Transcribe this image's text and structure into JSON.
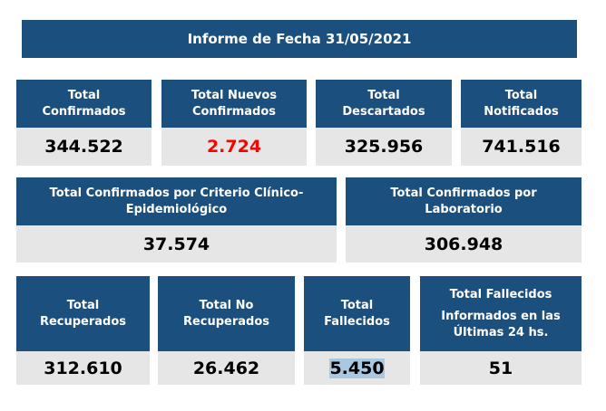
{
  "header": {
    "title": "Informe de Fecha 31/05/2021"
  },
  "cards": [
    {
      "label": [
        "Total",
        "Confirmados"
      ],
      "value": "344.522"
    },
    {
      "label": [
        "Total Nuevos",
        "Confirmados"
      ],
      "value": "2.724"
    },
    {
      "label": [
        "Total",
        "Descartados"
      ],
      "value": "325.956"
    },
    {
      "label": [
        "Total",
        "Notificados"
      ],
      "value": "741.516"
    },
    {
      "label": [
        "Total Confirmados por Criterio Clínico-",
        "Epidemiológico"
      ],
      "value": "37.574"
    },
    {
      "label": [
        "Total Confirmados por",
        "Laboratorio"
      ],
      "value": "306.948"
    },
    {
      "label": [
        "Total",
        "Recuperados"
      ],
      "value": "312.610"
    },
    {
      "label": [
        "Total No",
        "Recuperados"
      ],
      "value": "26.462"
    },
    {
      "label": [
        "Total",
        "Fallecidos"
      ],
      "value": "5.450"
    },
    {
      "label": [
        "Total Fallecidos",
        "Informados en las",
        "Últimas 24 hs."
      ],
      "value": "51"
    }
  ]
}
